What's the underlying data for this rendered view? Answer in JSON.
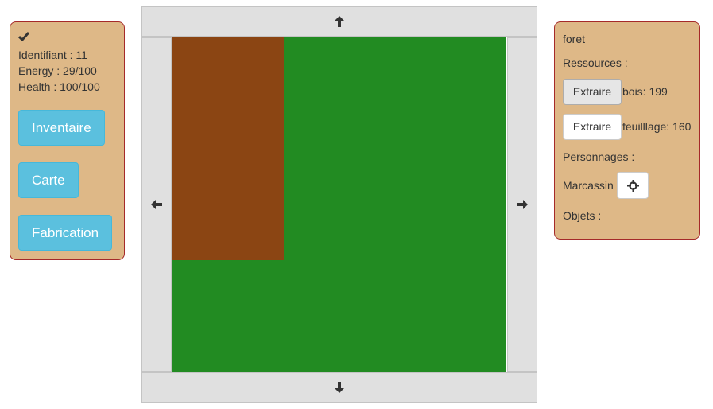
{
  "player": {
    "check_icon": "check-icon",
    "identifiant": "Identifiant : 11",
    "energy": "Energy : 29/100",
    "health": "Health : 100/100"
  },
  "menu": {
    "inventaire": "Inventaire",
    "carte": "Carte",
    "fabrication": "Fabrication"
  },
  "navigation": {
    "up_icon": "arrow-up-icon",
    "down_icon": "arrow-down-icon",
    "left_icon": "arrow-left-icon",
    "right_icon": "arrow-right-icon"
  },
  "map": {
    "ground_color": "#228b22",
    "tile_color": "#8b4513"
  },
  "location": {
    "name": "foret",
    "resources_title": "Ressources :",
    "resources": [
      {
        "button": "Extraire",
        "label": "bois: 199"
      },
      {
        "button": "Extraire",
        "label": "feuilllage: 160"
      }
    ],
    "characters_title": "Personnages :",
    "characters": [
      {
        "name": "Marcassin",
        "icon": "crosshair-icon"
      }
    ],
    "objects_title": "Objets :"
  },
  "colors": {
    "panel_bg": "#deb887",
    "panel_border": "#a52a2a",
    "button_info": "#5bc0de"
  }
}
